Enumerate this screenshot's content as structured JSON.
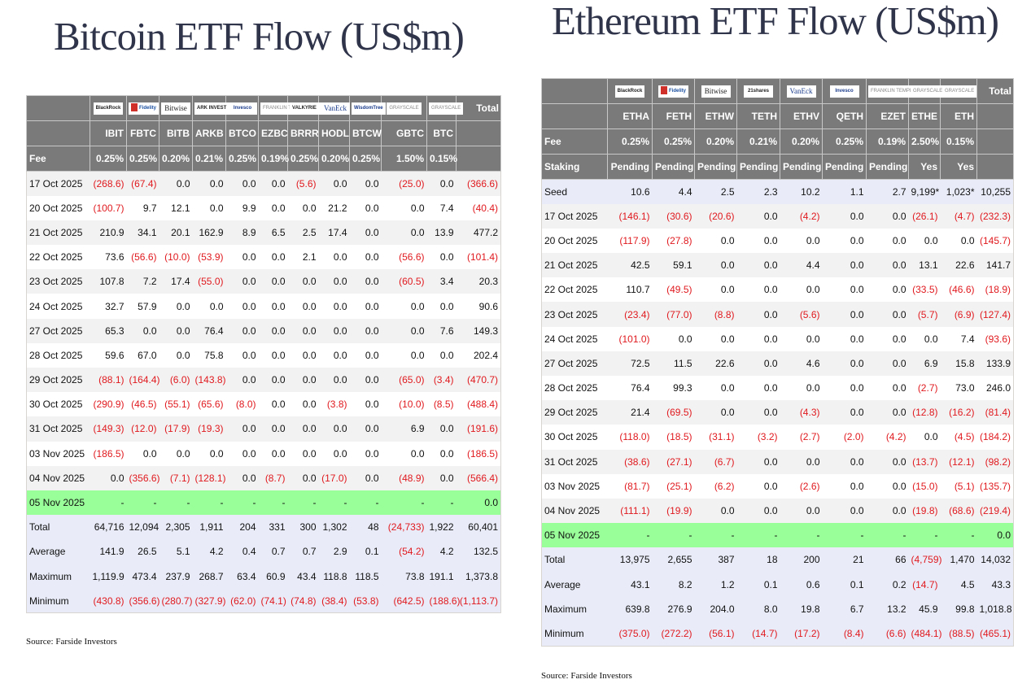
{
  "bitcoin": {
    "title": "Bitcoin ETF Flow (US$m)",
    "issuers": [
      "BlackRock",
      "Fidelity",
      "Bitwise",
      "ARK INVEST",
      "Invesco",
      "FRANKLIN TEMPLETON",
      "VALKYRIE",
      "VanEck",
      "WisdomTree",
      "GRAYSCALE",
      "GRAYSCALE"
    ],
    "total_label": "Total",
    "tickers": [
      "IBIT",
      "FBTC",
      "BITB",
      "ARKB",
      "BTCO",
      "EZBC",
      "BRRR",
      "HODL",
      "BTCW",
      "GBTC",
      "BTC"
    ],
    "fee_label": "Fee",
    "fees": [
      "0.25%",
      "0.25%",
      "0.20%",
      "0.21%",
      "0.25%",
      "0.19%",
      "0.25%",
      "0.20%",
      "0.25%",
      "1.50%",
      "0.15%"
    ],
    "rows": [
      {
        "date": "17 Oct 2025",
        "values": [
          "(268.6)",
          "(67.4)",
          "0.0",
          "0.0",
          "0.0",
          "0.0",
          "(5.6)",
          "0.0",
          "0.0",
          "(25.0)",
          "0.0"
        ],
        "total": "(366.6)"
      },
      {
        "date": "20 Oct 2025",
        "values": [
          "(100.7)",
          "9.7",
          "12.1",
          "0.0",
          "9.9",
          "0.0",
          "0.0",
          "21.2",
          "0.0",
          "0.0",
          "7.4"
        ],
        "total": "(40.4)"
      },
      {
        "date": "21 Oct 2025",
        "values": [
          "210.9",
          "34.1",
          "20.1",
          "162.9",
          "8.9",
          "6.5",
          "2.5",
          "17.4",
          "0.0",
          "0.0",
          "13.9"
        ],
        "total": "477.2"
      },
      {
        "date": "22 Oct 2025",
        "values": [
          "73.6",
          "(56.6)",
          "(10.0)",
          "(53.9)",
          "0.0",
          "0.0",
          "2.1",
          "0.0",
          "0.0",
          "(56.6)",
          "0.0"
        ],
        "total": "(101.4)"
      },
      {
        "date": "23 Oct 2025",
        "values": [
          "107.8",
          "7.2",
          "17.4",
          "(55.0)",
          "0.0",
          "0.0",
          "0.0",
          "0.0",
          "0.0",
          "(60.5)",
          "3.4"
        ],
        "total": "20.3"
      },
      {
        "date": "24 Oct 2025",
        "values": [
          "32.7",
          "57.9",
          "0.0",
          "0.0",
          "0.0",
          "0.0",
          "0.0",
          "0.0",
          "0.0",
          "0.0",
          "0.0"
        ],
        "total": "90.6"
      },
      {
        "date": "27 Oct 2025",
        "values": [
          "65.3",
          "0.0",
          "0.0",
          "76.4",
          "0.0",
          "0.0",
          "0.0",
          "0.0",
          "0.0",
          "0.0",
          "7.6"
        ],
        "total": "149.3"
      },
      {
        "date": "28 Oct 2025",
        "values": [
          "59.6",
          "67.0",
          "0.0",
          "75.8",
          "0.0",
          "0.0",
          "0.0",
          "0.0",
          "0.0",
          "0.0",
          "0.0"
        ],
        "total": "202.4"
      },
      {
        "date": "29 Oct 2025",
        "values": [
          "(88.1)",
          "(164.4)",
          "(6.0)",
          "(143.8)",
          "0.0",
          "0.0",
          "0.0",
          "0.0",
          "0.0",
          "(65.0)",
          "(3.4)"
        ],
        "total": "(470.7)"
      },
      {
        "date": "30 Oct 2025",
        "values": [
          "(290.9)",
          "(46.5)",
          "(55.1)",
          "(65.6)",
          "(8.0)",
          "0.0",
          "0.0",
          "(3.8)",
          "0.0",
          "(10.0)",
          "(8.5)"
        ],
        "total": "(488.4)"
      },
      {
        "date": "31 Oct 2025",
        "values": [
          "(149.3)",
          "(12.0)",
          "(17.9)",
          "(19.3)",
          "0.0",
          "0.0",
          "0.0",
          "0.0",
          "0.0",
          "6.9",
          "0.0"
        ],
        "total": "(191.6)"
      },
      {
        "date": "03 Nov 2025",
        "values": [
          "(186.5)",
          "0.0",
          "0.0",
          "0.0",
          "0.0",
          "0.0",
          "0.0",
          "0.0",
          "0.0",
          "0.0",
          "0.0"
        ],
        "total": "(186.5)"
      },
      {
        "date": "04 Nov 2025",
        "values": [
          "0.0",
          "(356.6)",
          "(7.1)",
          "(128.1)",
          "0.0",
          "(8.7)",
          "0.0",
          "(17.0)",
          "0.0",
          "(48.9)",
          "0.0"
        ],
        "total": "(566.4)"
      }
    ],
    "today": {
      "date": "05 Nov 2025",
      "values": [
        "-",
        "-",
        "-",
        "-",
        "-",
        "-",
        "-",
        "-",
        "-",
        "-",
        "-"
      ],
      "total": "0.0"
    },
    "stats": [
      {
        "label": "Total",
        "values": [
          "64,716",
          "12,094",
          "2,305",
          "1,911",
          "204",
          "331",
          "300",
          "1,302",
          "48",
          "(24,733)",
          "1,922"
        ],
        "total": "60,401"
      },
      {
        "label": "Average",
        "values": [
          "141.9",
          "26.5",
          "5.1",
          "4.2",
          "0.4",
          "0.7",
          "0.7",
          "2.9",
          "0.1",
          "(54.2)",
          "4.2"
        ],
        "total": "132.5"
      },
      {
        "label": "Maximum",
        "values": [
          "1,119.9",
          "473.4",
          "237.9",
          "268.7",
          "63.4",
          "60.9",
          "43.4",
          "118.8",
          "118.5",
          "73.8",
          "191.1"
        ],
        "total": "1,373.8"
      },
      {
        "label": "Minimum",
        "values": [
          "(430.8)",
          "(356.6)",
          "(280.7)",
          "(327.9)",
          "(62.0)",
          "(74.1)",
          "(74.8)",
          "(38.4)",
          "(53.8)",
          "(642.5)",
          "(188.6)"
        ],
        "total": "(1,113.7)"
      }
    ],
    "source": "Source: Farside Investors"
  },
  "ethereum": {
    "title": "Ethereum ETF Flow (US$m)",
    "issuers": [
      "BlackRock",
      "Fidelity",
      "Bitwise",
      "21shares",
      "VanEck",
      "Invesco",
      "FRANKLIN TEMPLETON",
      "GRAYSCALE",
      "GRAYSCALE"
    ],
    "total_label": "Total",
    "tickers": [
      "ETHA",
      "FETH",
      "ETHW",
      "TETH",
      "ETHV",
      "QETH",
      "EZET",
      "ETHE",
      "ETH"
    ],
    "fee_label": "Fee",
    "fees": [
      "0.25%",
      "0.25%",
      "0.20%",
      "0.21%",
      "0.20%",
      "0.25%",
      "0.19%",
      "2.50%",
      "0.15%"
    ],
    "staking_label": "Staking",
    "staking": [
      "Pending",
      "Pending",
      "Pending",
      "Pending",
      "Pending",
      "Pending",
      "Pending",
      "Yes",
      "Yes"
    ],
    "seed": {
      "label": "Seed",
      "values": [
        "10.6",
        "4.4",
        "2.5",
        "2.3",
        "10.2",
        "1.1",
        "2.7",
        "9,199*",
        "1,023*"
      ],
      "total": "10,255"
    },
    "rows": [
      {
        "date": "17 Oct 2025",
        "values": [
          "(146.1)",
          "(30.6)",
          "(20.6)",
          "0.0",
          "(4.2)",
          "0.0",
          "0.0",
          "(26.1)",
          "(4.7)"
        ],
        "total": "(232.3)"
      },
      {
        "date": "20 Oct 2025",
        "values": [
          "(117.9)",
          "(27.8)",
          "0.0",
          "0.0",
          "0.0",
          "0.0",
          "0.0",
          "0.0",
          "0.0"
        ],
        "total": "(145.7)"
      },
      {
        "date": "21 Oct 2025",
        "values": [
          "42.5",
          "59.1",
          "0.0",
          "0.0",
          "4.4",
          "0.0",
          "0.0",
          "13.1",
          "22.6"
        ],
        "total": "141.7"
      },
      {
        "date": "22 Oct 2025",
        "values": [
          "110.7",
          "(49.5)",
          "0.0",
          "0.0",
          "0.0",
          "0.0",
          "0.0",
          "(33.5)",
          "(46.6)"
        ],
        "total": "(18.9)"
      },
      {
        "date": "23 Oct 2025",
        "values": [
          "(23.4)",
          "(77.0)",
          "(8.8)",
          "0.0",
          "(5.6)",
          "0.0",
          "0.0",
          "(5.7)",
          "(6.9)"
        ],
        "total": "(127.4)"
      },
      {
        "date": "24 Oct 2025",
        "values": [
          "(101.0)",
          "0.0",
          "0.0",
          "0.0",
          "0.0",
          "0.0",
          "0.0",
          "0.0",
          "7.4"
        ],
        "total": "(93.6)"
      },
      {
        "date": "27 Oct 2025",
        "values": [
          "72.5",
          "11.5",
          "22.6",
          "0.0",
          "4.6",
          "0.0",
          "0.0",
          "6.9",
          "15.8"
        ],
        "total": "133.9"
      },
      {
        "date": "28 Oct 2025",
        "values": [
          "76.4",
          "99.3",
          "0.0",
          "0.0",
          "0.0",
          "0.0",
          "0.0",
          "(2.7)",
          "73.0"
        ],
        "total": "246.0"
      },
      {
        "date": "29 Oct 2025",
        "values": [
          "21.4",
          "(69.5)",
          "0.0",
          "0.0",
          "(4.3)",
          "0.0",
          "0.0",
          "(12.8)",
          "(16.2)"
        ],
        "total": "(81.4)"
      },
      {
        "date": "30 Oct 2025",
        "values": [
          "(118.0)",
          "(18.5)",
          "(31.1)",
          "(3.2)",
          "(2.7)",
          "(2.0)",
          "(4.2)",
          "0.0",
          "(4.5)"
        ],
        "total": "(184.2)"
      },
      {
        "date": "31 Oct 2025",
        "values": [
          "(38.6)",
          "(27.1)",
          "(6.7)",
          "0.0",
          "0.0",
          "0.0",
          "0.0",
          "(13.7)",
          "(12.1)"
        ],
        "total": "(98.2)"
      },
      {
        "date": "03 Nov 2025",
        "values": [
          "(81.7)",
          "(25.1)",
          "(6.2)",
          "0.0",
          "(2.6)",
          "0.0",
          "0.0",
          "(15.0)",
          "(5.1)"
        ],
        "total": "(135.7)"
      },
      {
        "date": "04 Nov 2025",
        "values": [
          "(111.1)",
          "(19.9)",
          "0.0",
          "0.0",
          "0.0",
          "0.0",
          "0.0",
          "(19.8)",
          "(68.6)"
        ],
        "total": "(219.4)"
      }
    ],
    "today": {
      "date": "05 Nov 2025",
      "values": [
        "-",
        "-",
        "-",
        "-",
        "-",
        "-",
        "-",
        "-",
        "-"
      ],
      "total": "0.0"
    },
    "stats": [
      {
        "label": "Total",
        "values": [
          "13,975",
          "2,655",
          "387",
          "18",
          "200",
          "21",
          "66",
          "(4,759)",
          "1,470"
        ],
        "total": "14,032"
      },
      {
        "label": "Average",
        "values": [
          "43.1",
          "8.2",
          "1.2",
          "0.1",
          "0.6",
          "0.1",
          "0.2",
          "(14.7)",
          "4.5"
        ],
        "total": "43.3"
      },
      {
        "label": "Maximum",
        "values": [
          "639.8",
          "276.9",
          "204.0",
          "8.0",
          "19.8",
          "6.7",
          "13.2",
          "45.9",
          "99.8"
        ],
        "total": "1,018.8"
      },
      {
        "label": "Minimum",
        "values": [
          "(375.0)",
          "(272.2)",
          "(56.1)",
          "(14.7)",
          "(17.2)",
          "(8.4)",
          "(6.6)",
          "(484.1)",
          "(88.5)"
        ],
        "total": "(465.1)"
      }
    ],
    "source": "Source: Farside Investors"
  },
  "colors": {
    "header_bg": "#7a7a7a",
    "negative": "#e0191e",
    "today_row": "#99ff99",
    "stats_row": "#e9ecf8",
    "stripe": "#f2f2f2",
    "title": "#30344a"
  }
}
